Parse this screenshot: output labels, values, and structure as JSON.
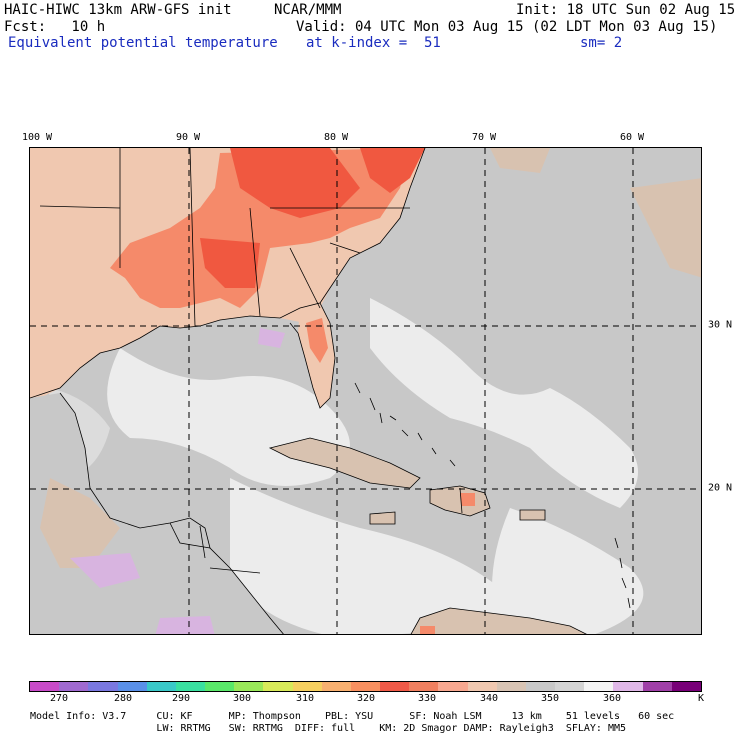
{
  "header": {
    "model_title": "HAIC-HIWC 13km ARW-GFS init",
    "org": "NCAR/MMM",
    "init": "Init: 18 UTC Sun 02 Aug 15",
    "fcst": "Fcst:   10 h",
    "valid": "Valid: 04 UTC Mon 03 Aug 15 (02 LDT Mon 03 Aug 15)",
    "field": "Equivalent potential temperature",
    "level": "at k-index =  51",
    "smooth": "sm= 2"
  },
  "map": {
    "lon_labels": [
      "100 W",
      "90 W",
      "80 W",
      "70 W",
      "60 W"
    ],
    "lat_labels": [
      "30 N",
      "20 N"
    ],
    "colors": {
      "ocean_mid": "#c8c8c8",
      "ocean_light": "#ececec",
      "land_warm": "#f0c8b0",
      "land_hot": "#f05840",
      "land_orange": "#f58a6a",
      "tan": "#d8c2b0",
      "lavender": "#d8b4e0"
    }
  },
  "colorbar": {
    "colors": [
      "#c84bc8",
      "#a06ad0",
      "#7a78e0",
      "#5a90e8",
      "#3ac8c8",
      "#3ae0a0",
      "#5ae86a",
      "#9ae85a",
      "#d8ea5a",
      "#f6d060",
      "#f8b070",
      "#f89060",
      "#f05a48",
      "#f08060",
      "#f8a890",
      "#f0c8b0",
      "#d8c4b4",
      "#c8c8c8",
      "#d4d4d4",
      "#f4f4f4",
      "#e0b8e8",
      "#a040a8",
      "#780078"
    ],
    "labels": [
      "270",
      "280",
      "290",
      "300",
      "310",
      "320",
      "330",
      "340",
      "350",
      "360"
    ],
    "unit": "K"
  },
  "footer": {
    "line1": "Model Info: V3.7     CU: KF      MP: Thompson    PBL: YSU      SF: Noah LSM     13 km    51 levels   60 sec",
    "line2": "                     LW: RRTMG   SW: RRTMG  DIFF: full    KM: 2D Smagor DAMP: Rayleigh3  SFLAY: MM5"
  }
}
